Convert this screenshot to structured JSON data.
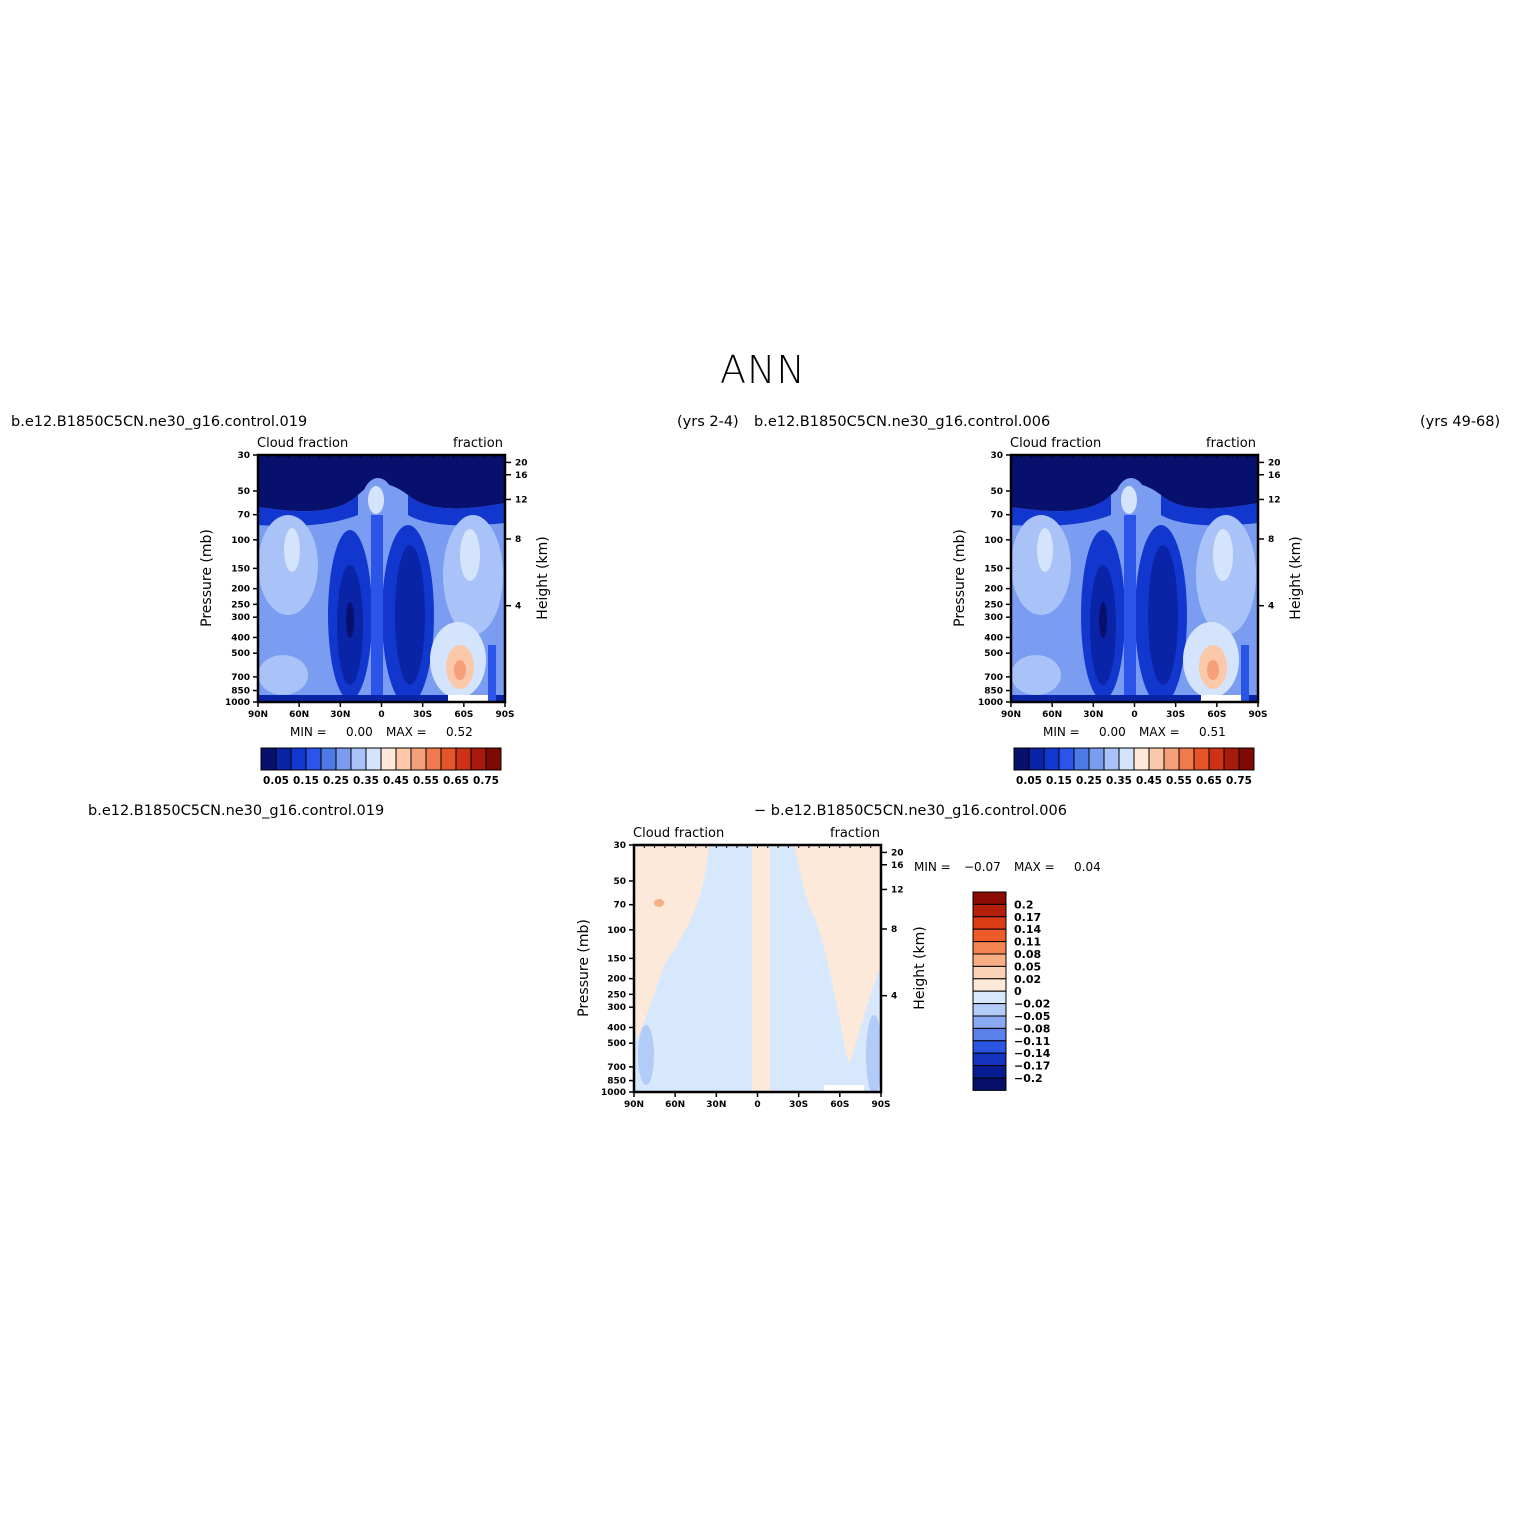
{
  "title": "ANN",
  "panels": [
    {
      "case_label": "b.e12.B1850C5CN.ne30_g16.control.019",
      "years_label": "(yrs 2-4)",
      "left_string": "Cloud fraction",
      "right_string": "fraction",
      "ylabel": "Pressure (mb)",
      "ylabel_right": "Height (km)",
      "min_label": "MIN =",
      "min_value": "0.00",
      "max_label": "MAX =",
      "max_value": "0.52"
    },
    {
      "case_label": "b.e12.B1850C5CN.ne30_g16.control.006",
      "years_label": "(yrs 49-68)",
      "left_string": "Cloud fraction",
      "right_string": "fraction",
      "ylabel": "Pressure (mb)",
      "ylabel_right": "Height (km)",
      "min_label": "MIN =",
      "min_value": "0.00",
      "max_label": "MAX =",
      "max_value": "0.51"
    },
    {
      "case_label_left": "b.e12.B1850C5CN.ne30_g16.control.019",
      "case_label_right": "− b.e12.B1850C5CN.ne30_g16.control.006",
      "left_string": "Cloud fraction",
      "right_string": "fraction",
      "ylabel": "Pressure (mb)",
      "ylabel_right": "Height (km)",
      "min_label": "MIN =",
      "min_value": "−0.07",
      "max_label": "MAX =",
      "max_value": "0.04"
    }
  ],
  "chart_data": [
    {
      "type": "heatmap",
      "x_ticks": [
        "90N",
        "60N",
        "30N",
        "0",
        "30S",
        "60S",
        "90S"
      ],
      "y_ticks": [
        "30",
        "50",
        "70",
        "100",
        "150",
        "200",
        "250",
        "300",
        "400",
        "500",
        "700",
        "850",
        "1000"
      ],
      "y2_ticks": [
        "20",
        "16",
        "12",
        "8",
        "4"
      ],
      "colorbar_labels": [
        "0.05",
        "0.15",
        "0.25",
        "0.35",
        "0.45",
        "0.55",
        "0.65",
        "0.75"
      ],
      "min": 0.0,
      "max": 0.52
    },
    {
      "type": "heatmap",
      "x_ticks": [
        "90N",
        "60N",
        "30N",
        "0",
        "30S",
        "60S",
        "90S"
      ],
      "y_ticks": [
        "30",
        "50",
        "70",
        "100",
        "150",
        "200",
        "250",
        "300",
        "400",
        "500",
        "700",
        "850",
        "1000"
      ],
      "y2_ticks": [
        "20",
        "16",
        "12",
        "8",
        "4"
      ],
      "colorbar_labels": [
        "0.05",
        "0.15",
        "0.25",
        "0.35",
        "0.45",
        "0.55",
        "0.65",
        "0.75"
      ],
      "min": 0.0,
      "max": 0.51
    },
    {
      "type": "heatmap",
      "x_ticks": [
        "90N",
        "60N",
        "30N",
        "0",
        "30S",
        "60S",
        "90S"
      ],
      "y_ticks": [
        "30",
        "50",
        "70",
        "100",
        "150",
        "200",
        "250",
        "300",
        "400",
        "500",
        "700",
        "850",
        "1000"
      ],
      "y2_ticks": [
        "20",
        "16",
        "12",
        "8",
        "4"
      ],
      "colorbar_labels": [
        "0.2",
        "0.17",
        "0.14",
        "0.11",
        "0.08",
        "0.05",
        "0.02",
        "0",
        "−0.02",
        "−0.05",
        "−0.08",
        "−0.11",
        "−0.14",
        "−0.17",
        "−0.2"
      ],
      "min": -0.07,
      "max": 0.04
    }
  ],
  "colors": {
    "abs_scale": [
      "#08106e",
      "#0a24a8",
      "#1237cf",
      "#2a55e8",
      "#4e7ae8",
      "#7a9df2",
      "#a9c3f8",
      "#d4e4fc",
      "#fde8da",
      "#fbc9aa",
      "#f6a07a",
      "#f07a4e",
      "#e6552a",
      "#cc3316",
      "#a81a0c",
      "#7f0a04"
    ],
    "diff_scale": [
      "#8b0a04",
      "#b4200c",
      "#dc3c14",
      "#ee5a28",
      "#f48452",
      "#f8ae84",
      "#fcd2b6",
      "#fde9da",
      "#d8e8fc",
      "#b2cbf8",
      "#8aa9f2",
      "#5a82ea",
      "#2c55e2",
      "#1434c0",
      "#081c92",
      "#06106a"
    ]
  }
}
